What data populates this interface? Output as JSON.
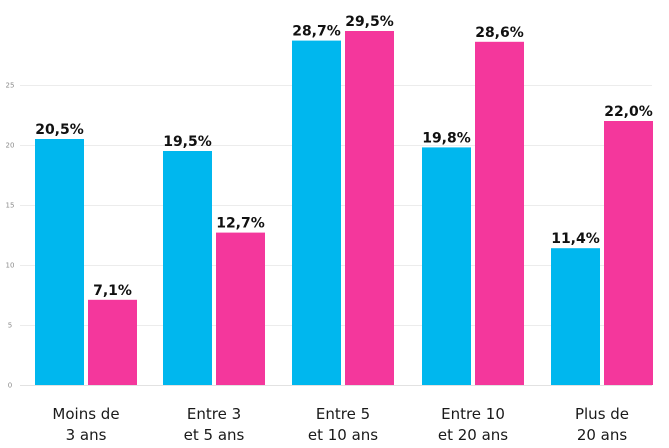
{
  "chart_data": {
    "type": "bar",
    "categories": [
      [
        "Moins de",
        "3 ans"
      ],
      [
        "Entre 3",
        "et 5 ans"
      ],
      [
        "Entre 5",
        "et 10 ans"
      ],
      [
        "Entre 10",
        "et 20 ans"
      ],
      [
        "Plus de",
        "20 ans"
      ]
    ],
    "series": [
      {
        "color": "#00b7ee",
        "values": [
          20.5,
          19.5,
          28.7,
          19.8,
          11.4
        ],
        "labels": [
          "20,5%",
          "19,5%",
          "28,7%",
          "19,8%",
          "11,4%"
        ]
      },
      {
        "color": "#f4379c",
        "values": [
          7.1,
          12.7,
          29.5,
          28.6,
          22.0
        ],
        "labels": [
          "7,1%",
          "12,7%",
          "29,5%",
          "28,6%",
          "22,0%"
        ]
      }
    ],
    "yticks": [
      0,
      5,
      10,
      15,
      20,
      25
    ],
    "ylim": [
      0,
      30
    ],
    "grid": true,
    "legend": "none"
  }
}
